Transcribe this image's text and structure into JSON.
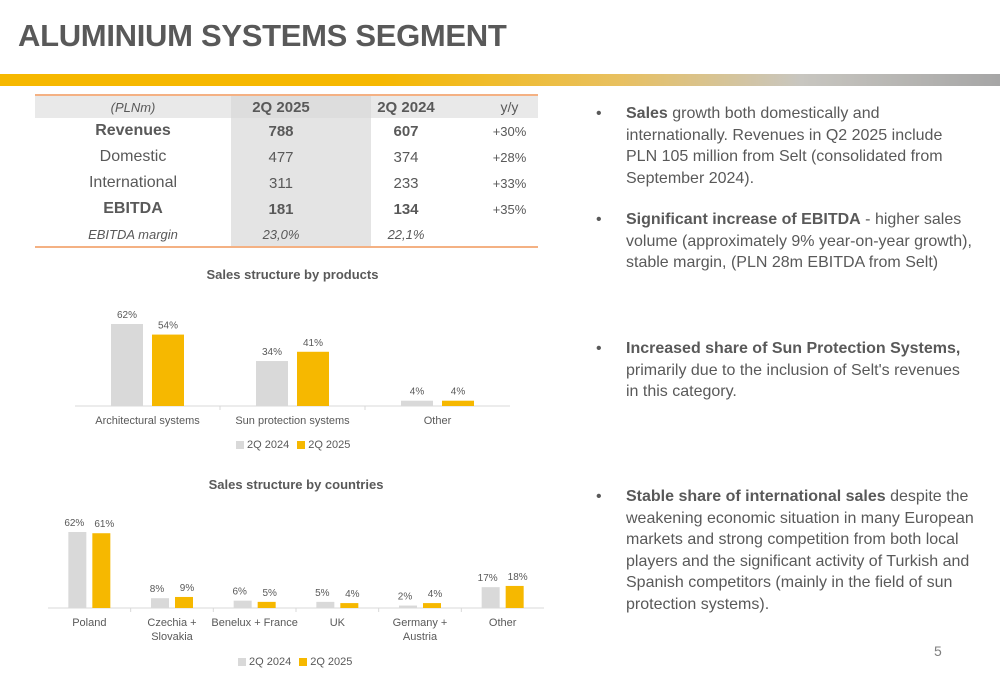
{
  "title": "ALUMINIUM SYSTEMS SEGMENT",
  "colors": {
    "accent": "#f6b800",
    "grey_bar": "#d9d9d9",
    "text": "#595959",
    "table_border": "#f4b183"
  },
  "table": {
    "header": [
      "(PLNm)",
      "2Q 2025",
      "2Q 2024",
      "y/y"
    ],
    "rows": [
      {
        "label": "Revenues",
        "q2025": "788",
        "q2024": "607",
        "yy": "+30%"
      },
      {
        "label": "Domestic",
        "q2025": "477",
        "q2024": "374",
        "yy": "+28%"
      },
      {
        "label": "International",
        "q2025": "311",
        "q2024": "233",
        "yy": "+33%"
      },
      {
        "label": "EBITDA",
        "q2025": "181",
        "q2024": "134",
        "yy": "+35%"
      },
      {
        "label": "EBITDA margin",
        "q2025": "23,0%",
        "q2024": "22,1%",
        "yy": ""
      }
    ]
  },
  "chart_data": [
    {
      "type": "bar",
      "title": "Sales structure by products",
      "categories": [
        "Architectural systems",
        "Sun protection systems",
        "Other"
      ],
      "series": [
        {
          "name": "2Q 2024",
          "color": "#d9d9d9",
          "values": [
            62,
            34,
            4
          ],
          "labels": [
            "62%",
            "34%",
            "4%"
          ]
        },
        {
          "name": "2Q 2025",
          "color": "#f6b800",
          "values": [
            54,
            41,
            4
          ],
          "labels": [
            "54%",
            "41%",
            "4%"
          ]
        }
      ],
      "ylim": [
        0,
        62
      ],
      "legend": "bottom",
      "grid": false
    },
    {
      "type": "bar",
      "title": "Sales structure  by countries",
      "categories": [
        [
          "Poland"
        ],
        [
          "Czechia +",
          "Slovakia"
        ],
        [
          "Benelux + France"
        ],
        [
          "UK"
        ],
        [
          "Germany +",
          "Austria"
        ],
        [
          "Other"
        ]
      ],
      "series": [
        {
          "name": "2Q 2024",
          "color": "#d9d9d9",
          "values": [
            62,
            8,
            6,
            5,
            2,
            17
          ],
          "labels": [
            "62%",
            "8%",
            "6%",
            "5%",
            "2%",
            "17%"
          ]
        },
        {
          "name": "2Q 2025",
          "color": "#f6b800",
          "values": [
            61,
            9,
            5,
            4,
            4,
            18
          ],
          "labels": [
            "61%",
            "9%",
            "5%",
            "4%",
            "4%",
            "18%"
          ]
        }
      ],
      "ylim": [
        0,
        62
      ],
      "legend": "bottom",
      "grid": false
    }
  ],
  "bullets": [
    {
      "bold": "Sales",
      "text": " growth both domestically and internationally. Revenues in Q2 2025 include PLN 105 million from Selt (consolidated from September 2024)."
    },
    {
      "bold": "Significant increase of EBITDA",
      "text": " - higher sales volume (approximately 9% year-on-year growth), stable margin,  (PLN 28m EBITDA from Selt)"
    },
    {
      "bold": "Increased share of Sun Protection Systems,",
      "text": " primarily due to the inclusion of Selt's revenues in this category."
    },
    {
      "bold": "Stable share of international sales",
      "text": " despite the weakening economic situation in many European markets and strong competition from both local players and the significant activity of Turkish and Spanish competitors (mainly in the field of sun protection systems)."
    }
  ],
  "bullet_symbol": "•",
  "page_number": "5"
}
